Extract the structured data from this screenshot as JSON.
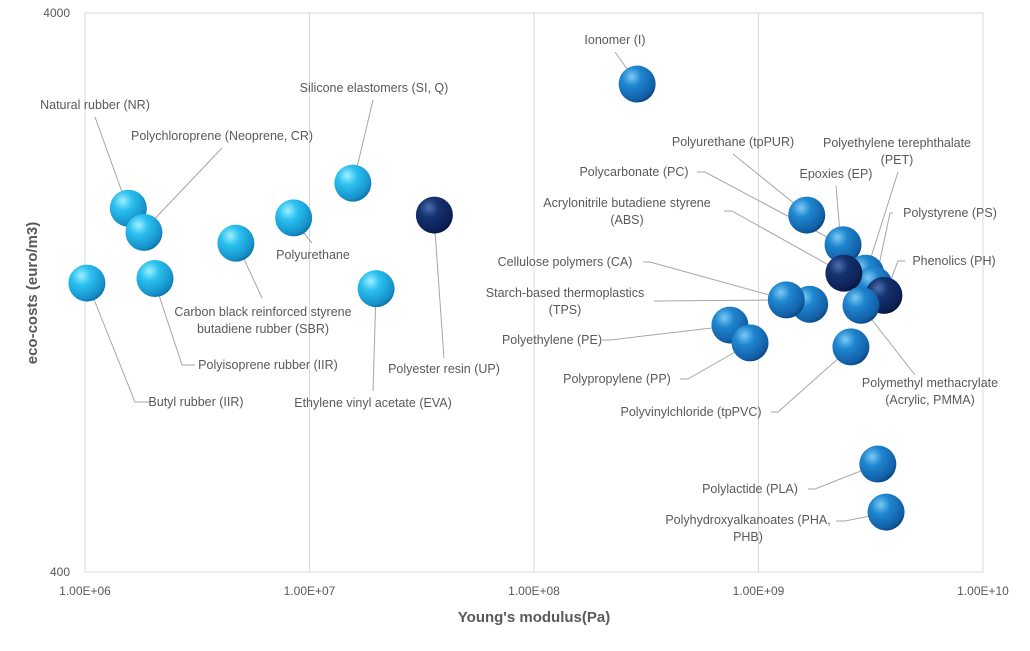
{
  "chart_data": {
    "type": "scatter",
    "title": "",
    "xlabel": "Young's modulus(Pa)",
    "ylabel": "eco-costs (euro/m3)",
    "x_scale": "log",
    "y_scale": "log",
    "xlim": [
      1000000,
      10000000000
    ],
    "ylim": [
      400,
      4000
    ],
    "x_ticks": [
      1000000,
      10000000,
      100000000,
      1000000000,
      10000000000
    ],
    "x_tick_labels": [
      "1.00E+06",
      "1.00E+07",
      "1.00E+08",
      "1.00E+09",
      "1.00E+10"
    ],
    "y_tick_labels": [
      "4000",
      "400"
    ],
    "grid": "vertical major gridlines",
    "legend": "none",
    "colors": {
      "elastomer": "#2bb5e8",
      "thermoplastic": "#1a78c2",
      "thermoset": "#0e2a6b"
    },
    "points": [
      {
        "label": [
          "Butyl rubber (IIR)"
        ],
        "x": 1020000,
        "y": 1315,
        "group": "elastomer"
      },
      {
        "label": [
          "Natural rubber (NR)"
        ],
        "x": 1560000,
        "y": 1790,
        "group": "elastomer"
      },
      {
        "label": [
          "Polychloroprene (Neoprene, CR)"
        ],
        "x": 1830000,
        "y": 1620,
        "group": "elastomer"
      },
      {
        "label": [
          "Polyisoprene rubber (IIR)"
        ],
        "x": 2050000,
        "y": 1340,
        "group": "elastomer"
      },
      {
        "label": [
          "Carbon black reinforced styrene",
          "butadiene rubber (SBR)"
        ],
        "x": 4700000,
        "y": 1550,
        "group": "elastomer"
      },
      {
        "label": [
          "Polyurethane"
        ],
        "x": 8500000,
        "y": 1720,
        "group": "elastomer"
      },
      {
        "label": [
          "Silicone elastomers (SI, Q)"
        ],
        "x": 15600000,
        "y": 1985,
        "group": "elastomer"
      },
      {
        "label": [
          "Ethylene vinyl acetate (EVA)"
        ],
        "x": 19800000,
        "y": 1285,
        "group": "elastomer"
      },
      {
        "label": [
          "Polyester resin (UP)"
        ],
        "x": 36000000,
        "y": 1740,
        "group": "thermoset"
      },
      {
        "label": [
          "Ionomer (I)"
        ],
        "x": 288000000,
        "y": 2985,
        "group": "thermoplastic"
      },
      {
        "label": [
          "Polyurethane (tpPUR)"
        ],
        "x": 1640000000,
        "y": 1740,
        "group": "thermoplastic"
      },
      {
        "label": [
          "Polycarbonate (PC)"
        ],
        "x": 2380000000,
        "y": 1540,
        "group": "thermoplastic"
      },
      {
        "label": [
          "Polyethylene terephthalate",
          "(PET)"
        ],
        "x": 3000000000,
        "y": 1370,
        "group": "thermoplastic"
      },
      {
        "label": [
          "Polystyrene (PS)"
        ],
        "x": 3270000000,
        "y": 1305,
        "group": "thermoplastic"
      },
      {
        "label": [
          "Acrylonitrile butadiene styrene",
          "(ABS)"
        ],
        "x": 2400000000,
        "y": 1370,
        "group": "thermoset"
      },
      {
        "label": [
          "Epoxies (EP)"
        ],
        "x": 2380000000,
        "y": 1540,
        "group": "hidden"
      },
      {
        "label": [
          "Phenolics (PH)"
        ],
        "x": 3620000000,
        "y": 1250,
        "group": "thermoset"
      },
      {
        "label": [
          "Polymethyl methacrylate",
          "(Acrylic, PMMA)"
        ],
        "x": 2860000000,
        "y": 1200,
        "group": "thermoplastic"
      },
      {
        "label": [
          "Cellulose polymers (CA)"
        ],
        "x": 1690000000,
        "y": 1205,
        "group": "thermoplastic"
      },
      {
        "label": [
          "Starch-based thermoplastics",
          "(TPS)"
        ],
        "x": 1330000000,
        "y": 1227,
        "group": "thermoplastic"
      },
      {
        "label": [
          "Polyethylene (PE)"
        ],
        "x": 746000000,
        "y": 1106,
        "group": "thermoplastic"
      },
      {
        "label": [
          "Polypropylene (PP)"
        ],
        "x": 917000000,
        "y": 1028,
        "group": "thermoplastic"
      },
      {
        "label": [
          "Polyvinylchloride (tpPVC)"
        ],
        "x": 2580000000,
        "y": 1011,
        "group": "thermoplastic"
      },
      {
        "label": [
          "Polylactide (PLA)"
        ],
        "x": 3400000000,
        "y": 624,
        "group": "thermoplastic"
      },
      {
        "label": [
          "Polyhydroxyalkanoates (PHA,",
          "PHB)"
        ],
        "x": 3700000000,
        "y": 512,
        "group": "thermoplastic"
      }
    ]
  }
}
